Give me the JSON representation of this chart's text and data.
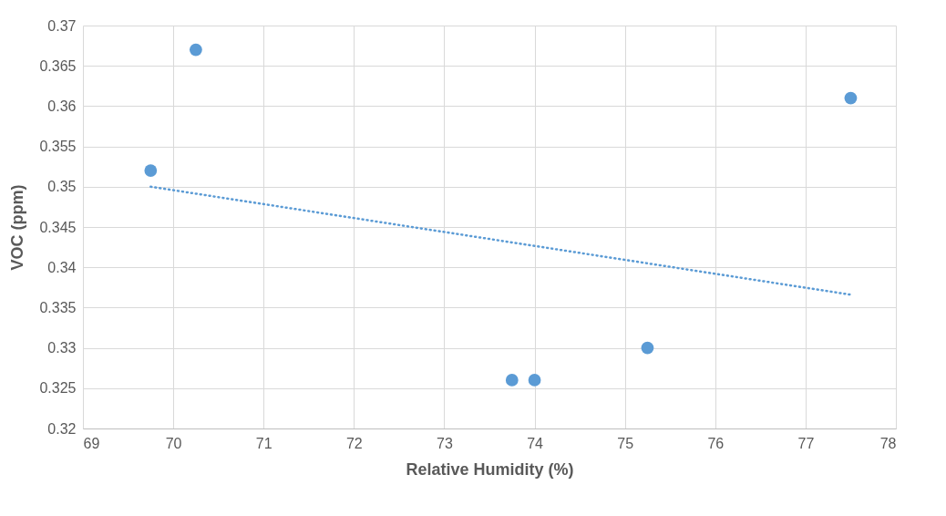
{
  "chart_data": {
    "type": "scatter",
    "xlabel": "Relative Humidity (%)",
    "ylabel": "VOC (ppm)",
    "xlim": [
      69,
      78
    ],
    "xticks": [
      69,
      70,
      71,
      72,
      73,
      74,
      75,
      76,
      77,
      78
    ],
    "ylim": [
      0.32,
      0.37
    ],
    "yticks": [
      0.32,
      0.325,
      0.33,
      0.335,
      0.34,
      0.345,
      0.35,
      0.355,
      0.36,
      0.365,
      0.37
    ],
    "grid": true,
    "series": [
      {
        "marker": "circle",
        "color": "#5b9bd5",
        "x": [
          69.75,
          70.25,
          73.75,
          74,
          75.25,
          77.5
        ],
        "values": [
          0.352,
          0.367,
          0.326,
          0.326,
          0.33,
          0.361
        ]
      },
      {
        "type": "line",
        "color": "#5b9bd5",
        "line_style": "dotted",
        "x": [
          69.75,
          77.5
        ],
        "values": [
          0.35,
          0.3366
        ]
      }
    ]
  }
}
